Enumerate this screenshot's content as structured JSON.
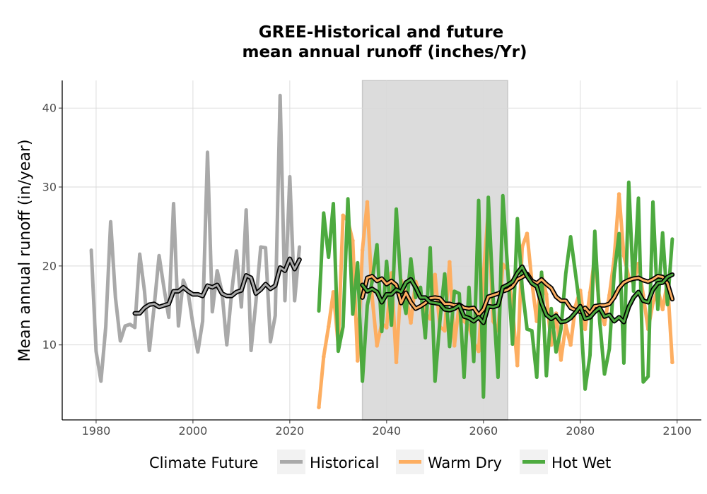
{
  "chart_data": {
    "type": "line",
    "title": "GREE-Historical and future",
    "subtitle": "mean annual runoff (inches/Yr)",
    "xlabel": "",
    "ylabel": "Mean annual runoff (in/year)",
    "xlim": [
      1973,
      2105
    ],
    "ylim": [
      0.5,
      43.5
    ],
    "x_ticks": [
      1980,
      2000,
      2020,
      2040,
      2060,
      2080,
      2100
    ],
    "y_ticks": [
      10,
      20,
      30,
      40
    ],
    "grid": true,
    "highlight_band": {
      "x_start": 2035,
      "x_end": 2065,
      "color": "#dcdcdc"
    },
    "legend": {
      "title": "Climate Future",
      "position": "bottom",
      "items": [
        {
          "label": "Historical",
          "color": "#a9a9a9"
        },
        {
          "label": "Warm Dry",
          "color": "#fdae61"
        },
        {
          "label": "Hot Wet",
          "color": "#4daa3f"
        }
      ]
    },
    "series": [
      {
        "name": "Historical",
        "color": "#a9a9a9",
        "x": [
          1979,
          1980,
          1981,
          1982,
          1983,
          1984,
          1985,
          1986,
          1987,
          1988,
          1989,
          1990,
          1991,
          1992,
          1993,
          1994,
          1995,
          1996,
          1997,
          1998,
          1999,
          2000,
          2001,
          2002,
          2003,
          2004,
          2005,
          2006,
          2007,
          2008,
          2009,
          2010,
          2011,
          2012,
          2013,
          2014,
          2015,
          2016,
          2017,
          2018,
          2019,
          2020,
          2021,
          2022
        ],
        "y": [
          22.0,
          9.2,
          5.4,
          12.3,
          25.6,
          16.0,
          10.5,
          12.4,
          12.6,
          12.2,
          21.5,
          16.8,
          9.3,
          14.9,
          21.3,
          17.3,
          13.5,
          27.9,
          12.4,
          18.2,
          16.6,
          12.6,
          9.1,
          13.0,
          34.4,
          14.2,
          19.4,
          16.7,
          10.0,
          16.7,
          21.9,
          14.8,
          27.1,
          9.3,
          15.4,
          22.4,
          22.3,
          10.4,
          13.7,
          41.6,
          15.6,
          31.3,
          15.6,
          22.4
        ]
      },
      {
        "name": "Historical rolling mean",
        "color": "#a9a9a9",
        "x": [
          1988,
          1989,
          1990,
          1991,
          1992,
          1993,
          1994,
          1995,
          1996,
          1997,
          1998,
          1999,
          2000,
          2001,
          2002,
          2003,
          2004,
          2005,
          2006,
          2007,
          2008,
          2009,
          2010,
          2011,
          2012,
          2013,
          2014,
          2015,
          2016,
          2017,
          2018,
          2019,
          2020,
          2021,
          2022
        ],
        "y": [
          14.0,
          14.0,
          14.7,
          15.1,
          15.2,
          14.8,
          15.0,
          15.2,
          16.8,
          16.8,
          17.3,
          16.8,
          16.4,
          16.4,
          16.2,
          17.5,
          17.3,
          17.6,
          16.5,
          16.2,
          16.2,
          16.7,
          16.9,
          18.8,
          18.5,
          16.5,
          17.0,
          17.7,
          17.1,
          17.5,
          19.8,
          19.4,
          20.9,
          19.6,
          20.8
        ]
      },
      {
        "name": "Warm Dry",
        "color": "#fdae61",
        "x": [
          2026,
          2027,
          2028,
          2029,
          2030,
          2031,
          2032,
          2033,
          2034,
          2035,
          2036,
          2037,
          2038,
          2039,
          2040,
          2041,
          2042,
          2043,
          2044,
          2045,
          2046,
          2047,
          2048,
          2049,
          2050,
          2051,
          2052,
          2053,
          2054,
          2055,
          2056,
          2057,
          2058,
          2059,
          2060,
          2061,
          2062,
          2063,
          2064,
          2065,
          2066,
          2067,
          2068,
          2069,
          2070,
          2071,
          2072,
          2073,
          2074,
          2075,
          2076,
          2077,
          2078,
          2079,
          2080,
          2081,
          2082,
          2083,
          2084,
          2085,
          2086,
          2087,
          2088,
          2089,
          2090,
          2091,
          2092,
          2093,
          2094,
          2095,
          2096,
          2097,
          2098,
          2099
        ],
        "y": [
          2.1,
          8.5,
          12.3,
          16.7,
          10.0,
          26.4,
          25.7,
          23.2,
          8.0,
          22.0,
          28.1,
          16.1,
          9.9,
          12.7,
          12.2,
          19.1,
          7.8,
          18.2,
          16.3,
          12.8,
          18.0,
          16.3,
          14.0,
          13.3,
          18.9,
          12.3,
          11.8,
          20.5,
          9.9,
          15.3,
          13.0,
          12.4,
          10.3,
          9.2,
          18.8,
          27.1,
          13.0,
          11.8,
          20.2,
          19.5,
          14.6,
          7.4,
          22.4,
          24.1,
          18.0,
          13.0,
          18.9,
          16.4,
          10.0,
          14.0,
          8.1,
          12.5,
          10.0,
          14.9,
          16.9,
          12.0,
          16.6,
          21.1,
          14.5,
          12.6,
          16.3,
          20.9,
          29.1,
          21.3,
          18.6,
          17.8,
          20.3,
          16.3,
          12.0,
          15.3,
          17.1,
          14.5,
          18.0,
          7.8
        ]
      },
      {
        "name": "Warm Dry rolling mean",
        "color": "#fdae61",
        "x": [
          2035,
          2036,
          2037,
          2038,
          2039,
          2040,
          2041,
          2042,
          2043,
          2044,
          2045,
          2046,
          2047,
          2048,
          2049,
          2050,
          2051,
          2052,
          2053,
          2054,
          2055,
          2056,
          2057,
          2058,
          2059,
          2060,
          2061,
          2062,
          2063,
          2064,
          2065,
          2066,
          2067,
          2068,
          2069,
          2070,
          2071,
          2072,
          2073,
          2074,
          2075,
          2076,
          2077,
          2078,
          2079,
          2080,
          2081,
          2082,
          2083,
          2084,
          2085,
          2086,
          2087,
          2088,
          2089,
          2090,
          2091,
          2092,
          2093,
          2094,
          2095,
          2096,
          2097,
          2098,
          2099
        ],
        "y": [
          16.0,
          18.5,
          18.7,
          18.1,
          18.4,
          17.7,
          18.1,
          17.6,
          15.3,
          16.6,
          15.4,
          14.6,
          14.9,
          15.3,
          15.9,
          16.0,
          15.9,
          15.2,
          15.2,
          15.0,
          15.1,
          14.7,
          14.6,
          14.7,
          13.8,
          14.5,
          16.1,
          16.3,
          16.5,
          16.8,
          17.0,
          17.4,
          18.3,
          18.6,
          19.0,
          18.1,
          17.8,
          18.3,
          17.7,
          17.2,
          16.1,
          15.6,
          15.6,
          14.7,
          14.4,
          14.2,
          14.7,
          14.0,
          14.9,
          15.0,
          15.0,
          15.2,
          16.0,
          17.2,
          17.9,
          18.2,
          18.4,
          18.5,
          18.2,
          18.0,
          18.3,
          18.7,
          18.6,
          17.8,
          15.8
        ]
      },
      {
        "name": "Hot Wet",
        "color": "#4daa3f",
        "x": [
          2026,
          2027,
          2028,
          2029,
          2030,
          2031,
          2032,
          2033,
          2034,
          2035,
          2036,
          2037,
          2038,
          2039,
          2040,
          2041,
          2042,
          2043,
          2044,
          2045,
          2046,
          2047,
          2048,
          2049,
          2050,
          2051,
          2052,
          2053,
          2054,
          2055,
          2056,
          2057,
          2058,
          2059,
          2060,
          2061,
          2062,
          2063,
          2064,
          2065,
          2066,
          2067,
          2068,
          2069,
          2070,
          2071,
          2072,
          2073,
          2074,
          2075,
          2076,
          2077,
          2078,
          2079,
          2080,
          2081,
          2082,
          2083,
          2084,
          2085,
          2086,
          2087,
          2088,
          2089,
          2090,
          2091,
          2092,
          2093,
          2094,
          2095,
          2096,
          2097,
          2098,
          2099
        ],
        "y": [
          14.3,
          26.7,
          21.1,
          27.9,
          9.2,
          12.3,
          28.5,
          13.9,
          20.4,
          5.4,
          15.0,
          18.0,
          22.7,
          11.7,
          20.6,
          12.5,
          27.2,
          17.1,
          14.0,
          20.9,
          16.0,
          17.3,
          10.9,
          22.3,
          5.4,
          13.0,
          19.0,
          9.8,
          16.8,
          16.5,
          5.9,
          17.3,
          7.9,
          28.3,
          3.4,
          28.7,
          16.0,
          5.9,
          28.9,
          19.5,
          10.1,
          26.0,
          17.2,
          12.0,
          11.8,
          5.9,
          19.2,
          6.1,
          14.6,
          9.1,
          12.0,
          19.0,
          23.7,
          19.1,
          14.4,
          4.4,
          8.7,
          24.4,
          13.0,
          6.3,
          9.5,
          19.0,
          24.1,
          7.7,
          30.6,
          16.8,
          28.6,
          5.3,
          6.0,
          28.1,
          14.5,
          24.2,
          15.1,
          23.4
        ]
      },
      {
        "name": "Hot Wet rolling mean",
        "color": "#4daa3f",
        "x": [
          2035,
          2036,
          2037,
          2038,
          2039,
          2040,
          2041,
          2042,
          2043,
          2044,
          2045,
          2046,
          2047,
          2048,
          2049,
          2050,
          2051,
          2052,
          2053,
          2054,
          2055,
          2056,
          2057,
          2058,
          2059,
          2060,
          2061,
          2062,
          2063,
          2064,
          2065,
          2066,
          2067,
          2068,
          2069,
          2070,
          2071,
          2072,
          2073,
          2074,
          2075,
          2076,
          2077,
          2078,
          2079,
          2080,
          2081,
          2082,
          2083,
          2084,
          2085,
          2086,
          2087,
          2088,
          2089,
          2090,
          2091,
          2092,
          2093,
          2094,
          2095,
          2096,
          2097,
          2098,
          2099
        ],
        "y": [
          17.6,
          16.8,
          17.1,
          16.7,
          15.4,
          16.4,
          16.4,
          17.0,
          16.7,
          17.9,
          18.3,
          17.3,
          16.0,
          16.0,
          15.4,
          15.3,
          15.2,
          14.5,
          14.4,
          14.6,
          15.0,
          13.6,
          13.4,
          13.0,
          13.5,
          12.8,
          14.9,
          14.8,
          15.0,
          17.3,
          17.6,
          18.0,
          19.1,
          19.9,
          18.7,
          17.8,
          17.4,
          15.3,
          13.8,
          13.3,
          13.7,
          12.9,
          13.0,
          13.4,
          14.1,
          14.9,
          13.3,
          13.5,
          14.2,
          14.7,
          13.6,
          13.8,
          13.0,
          13.5,
          12.9,
          14.8,
          16.0,
          16.7,
          15.6,
          15.4,
          17.0,
          17.8,
          17.9,
          18.6,
          18.9
        ]
      }
    ]
  }
}
